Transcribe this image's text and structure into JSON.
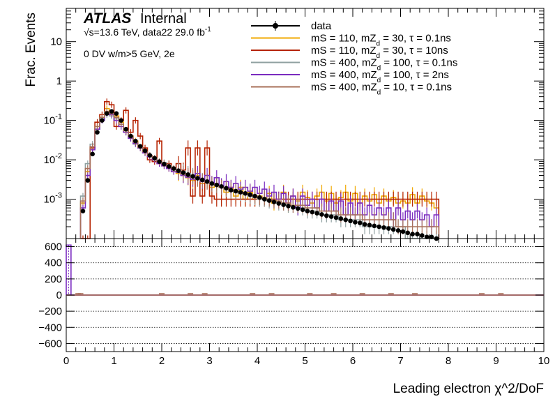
{
  "header": {
    "atlas": "ATLAS",
    "internal": "Internal",
    "energy": "√s=13.6 TeV, data22 29.0 fb",
    "lumi_sup": "-1",
    "selection": "0 DV w/m>5 GeV, 2e"
  },
  "legend": {
    "placement": "top-right",
    "entries": [
      {
        "label": "data",
        "color": "#000000",
        "marker": true
      },
      {
        "label": "mS = 110, mZ_d = 30, τ = 0.1ns",
        "color": "#f0a800"
      },
      {
        "label": "mS = 110, mZ_d = 30, τ = 10ns",
        "color": "#b52200"
      },
      {
        "label": "mS = 400, mZ_d = 100, τ = 0.1ns",
        "color": "#8fa0a0"
      },
      {
        "label": "mS = 400, mZ_d = 100, τ = 2ns",
        "color": "#7a2bbf"
      },
      {
        "label": "mS = 400, mZ_d = 10, τ = 0.1ns",
        "color": "#a8705a"
      }
    ]
  },
  "chart_data": [
    {
      "type": "line",
      "panel": "main",
      "ylabel": "Frac. Events",
      "yscale": "log",
      "ylim": [
        0.0001,
        70
      ],
      "xlim": [
        0,
        10
      ],
      "y_ticks": [
        "10^{-3}",
        "10^{-2}",
        "10^{-1}",
        "1",
        "10"
      ],
      "y_tick_values": [
        0.001,
        0.01,
        0.1,
        1,
        10
      ],
      "x": [
        0.35,
        0.45,
        0.55,
        0.65,
        0.75,
        0.85,
        0.95,
        1.05,
        1.15,
        1.25,
        1.35,
        1.45,
        1.55,
        1.65,
        1.75,
        1.85,
        1.95,
        2.05,
        2.15,
        2.25,
        2.35,
        2.45,
        2.55,
        2.65,
        2.75,
        2.85,
        2.95,
        3.05,
        3.15,
        3.25,
        3.35,
        3.45,
        3.55,
        3.65,
        3.75,
        3.85,
        3.95,
        4.05,
        4.15,
        4.25,
        4.35,
        4.45,
        4.55,
        4.65,
        4.75,
        4.85,
        4.95,
        5.05,
        5.15,
        5.25,
        5.35,
        5.45,
        5.55,
        5.65,
        5.75,
        5.85,
        5.95,
        6.05,
        6.15,
        6.25,
        6.35,
        6.45,
        6.55,
        6.65,
        6.75,
        6.85,
        6.95,
        7.05,
        7.15,
        7.25,
        7.35,
        7.45,
        7.55,
        7.65,
        7.75
      ],
      "series": [
        {
          "name": "data",
          "values": [
            0.0005,
            0.003,
            0.014,
            0.05,
            0.1,
            0.15,
            0.17,
            0.15,
            0.1,
            0.06,
            0.04,
            0.03,
            0.022,
            0.017,
            0.013,
            0.011,
            0.009,
            0.0078,
            0.0068,
            0.006,
            0.0053,
            0.0047,
            0.0042,
            0.0038,
            0.0034,
            0.0031,
            0.0028,
            0.0025,
            0.0023,
            0.0021,
            0.0019,
            0.0017,
            0.0016,
            0.0015,
            0.0014,
            0.0013,
            0.0012,
            0.0011,
            0.001,
            0.00092,
            0.00085,
            0.00078,
            0.00072,
            0.00067,
            0.00062,
            0.00058,
            0.00054,
            0.0005,
            0.00047,
            0.00044,
            0.00041,
            0.00038,
            0.00036,
            0.00034,
            0.00032,
            0.0003,
            0.00028,
            0.00026,
            0.00025,
            0.00023,
            0.00022,
            0.00021,
            0.0002,
            0.00019,
            0.00018,
            0.00017,
            0.00016,
            0.00015,
            0.00014,
            0.00013,
            0.00013,
            0.00012,
            0.00011,
            0.00011,
            0.0001
          ]
        },
        {
          "name": "mS = 110, mZ_d = 30, τ = 0.1ns",
          "values": [
            0.0008,
            0.005,
            0.02,
            0.07,
            0.12,
            0.2,
            0.16,
            0.13,
            0.09,
            0.05,
            0.04,
            0.03,
            0.02,
            0.015,
            0.012,
            0.01,
            0.008,
            0.007,
            0.006,
            0.005,
            0.0045,
            0.004,
            0.0035,
            0.003,
            0.004,
            0.0025,
            0.003,
            0.002,
            0.0025,
            0.002,
            0.0015,
            0.002,
            0.0012,
            0.002,
            0.001,
            0.0015,
            0.001,
            0.0012,
            0.001,
            0.0014,
            0.0008,
            0.001,
            0.0015,
            0.0007,
            0.0012,
            0.0009,
            0.0015,
            0.0011,
            0.0008,
            0.0012,
            0.0015,
            0.0009,
            0.0014,
            0.0008,
            0.0011,
            0.0015,
            0.0009,
            0.0014,
            0.0008,
            0.0012,
            0.0009,
            0.0013,
            0.0008,
            0.0012,
            0.0009,
            0.0011,
            0.0008,
            0.0009,
            0.0008,
            0.0013,
            0.0008,
            0.0012,
            0.0009,
            0.0008,
            0.0006
          ]
        },
        {
          "name": "mS = 110, mZ_d = 30, τ = 10ns",
          "values": [
            0.0001,
            0.0001,
            0.02,
            0.09,
            0.14,
            0.3,
            0.25,
            0.07,
            0.1,
            0.18,
            0.05,
            0.1,
            0.04,
            0.02,
            0.01,
            0.009,
            0.03,
            0.008,
            0.008,
            0.006,
            0.008,
            0.0055,
            0.02,
            0.0012,
            0.02,
            0.0012,
            0.02,
            0.0012,
            0.001,
            0.001,
            0.001,
            0.001,
            0.001,
            0.001,
            0.001,
            0.001,
            0.001,
            0.001,
            0.001,
            0.001,
            0.001,
            0.001,
            0.001,
            0.001,
            0.001,
            0.001,
            0.001,
            0.001,
            0.001,
            0.001,
            0.001,
            0.001,
            0.001,
            0.001,
            0.001,
            0.001,
            0.001,
            0.001,
            0.001,
            0.001,
            0.001,
            0.001,
            0.001,
            0.001,
            0.001,
            0.001,
            0.001,
            0.001,
            0.001,
            0.001,
            0.001,
            0.001,
            0.001,
            0.001,
            0.001
          ]
        },
        {
          "name": "mS = 400, mZ_d = 100, τ = 0.1ns",
          "values": [
            0.0012,
            0.008,
            0.025,
            0.06,
            0.11,
            0.14,
            0.13,
            0.11,
            0.08,
            0.05,
            0.035,
            0.025,
            0.02,
            0.016,
            0.013,
            0.011,
            0.009,
            0.0085,
            0.007,
            0.006,
            0.0055,
            0.005,
            0.0045,
            0.004,
            0.0035,
            0.003,
            0.0028,
            0.0025,
            0.0022,
            0.002,
            0.0018,
            0.0016,
            0.0015,
            0.0014,
            0.0013,
            0.0012,
            0.0011,
            0.001,
            0.001,
            0.0009,
            0.0009,
            0.0008,
            0.0008,
            0.0007,
            0.0007,
            0.0006,
            0.0006,
            0.0005,
            0.0005,
            0.0005,
            0.0004,
            0.0004,
            0.0004,
            0.0004,
            0.0003,
            0.0003,
            0.0003,
            0.0003,
            0.0003,
            0.0002,
            0.0002,
            0.0002,
            0.0002,
            0.0002,
            0.0002,
            0.0002,
            0.0002,
            0.0002,
            0.0001,
            0.0001,
            0.0001,
            0.0001,
            0.0001,
            0.0001,
            0.0001
          ]
        },
        {
          "name": "mS = 400, mZ_d = 100, τ = 2ns",
          "values": [
            0.0006,
            0.004,
            0.018,
            0.06,
            0.1,
            0.15,
            0.14,
            0.1,
            0.07,
            0.05,
            0.035,
            0.026,
            0.02,
            0.015,
            0.012,
            0.01,
            0.008,
            0.007,
            0.006,
            0.005,
            0.0048,
            0.004,
            0.0036,
            0.0032,
            0.0045,
            0.0028,
            0.004,
            0.0025,
            0.0035,
            0.0022,
            0.0028,
            0.002,
            0.0025,
            0.0018,
            0.002,
            0.0016,
            0.002,
            0.0014,
            0.0018,
            0.0012,
            0.0015,
            0.001,
            0.0014,
            0.0008,
            0.0012,
            0.0006,
            0.0012,
            0.0007,
            0.001,
            0.0006,
            0.001,
            0.0005,
            0.0009,
            0.0005,
            0.0009,
            0.0004,
            0.0008,
            0.0004,
            0.0008,
            0.0004,
            0.0007,
            0.0004,
            0.0006,
            0.0004,
            0.0006,
            0.0003,
            0.0006,
            0.0003,
            0.0005,
            0.0003,
            0.0005,
            0.0003,
            0.0004,
            0.0002,
            0.0004
          ]
        },
        {
          "name": "mS = 400, mZ_d = 10, τ = 0.1ns",
          "values": [
            0.0009,
            0.006,
            0.022,
            0.07,
            0.12,
            0.17,
            0.15,
            0.12,
            0.08,
            0.055,
            0.04,
            0.028,
            0.021,
            0.016,
            0.013,
            0.011,
            0.009,
            0.008,
            0.007,
            0.006,
            0.005,
            0.0045,
            0.004,
            0.0036,
            0.0032,
            0.0029,
            0.0027,
            0.0024,
            0.0022,
            0.002,
            0.0019,
            0.0017,
            0.0016,
            0.0015,
            0.0014,
            0.0013,
            0.0012,
            0.0011,
            0.0011,
            0.001,
            0.0009,
            0.0009,
            0.0008,
            0.0008,
            0.0007,
            0.0007,
            0.0007,
            0.0006,
            0.0006,
            0.0006,
            0.0005,
            0.0005,
            0.0005,
            0.0005,
            0.0004,
            0.0004,
            0.0004,
            0.0004,
            0.0004,
            0.0003,
            0.0003,
            0.0003,
            0.0003,
            0.0003,
            0.0003,
            0.0003,
            0.0002,
            0.0002,
            0.0002,
            0.0002,
            0.0002,
            0.0002,
            0.0002,
            0.0002,
            0.0002
          ]
        }
      ]
    },
    {
      "type": "line",
      "panel": "ratio",
      "xlabel": "Leading electron χ^2/DoF",
      "xlim": [
        0,
        10
      ],
      "ylim": [
        -700,
        700
      ],
      "x_ticks": [
        "0",
        "1",
        "2",
        "3",
        "4",
        "5",
        "6",
        "7",
        "8",
        "9",
        "10"
      ],
      "y_ticks": [
        "−600",
        "−400",
        "−200",
        "0",
        "200",
        "400",
        "600"
      ],
      "y_tick_values": [
        -600,
        -400,
        -200,
        0,
        200,
        400,
        600
      ],
      "grid": true,
      "series": [
        {
          "name": "mS = 400, mZ_d = 100, τ = 2ns",
          "x": [
            0.05
          ],
          "values": [
            620
          ]
        }
      ]
    }
  ]
}
